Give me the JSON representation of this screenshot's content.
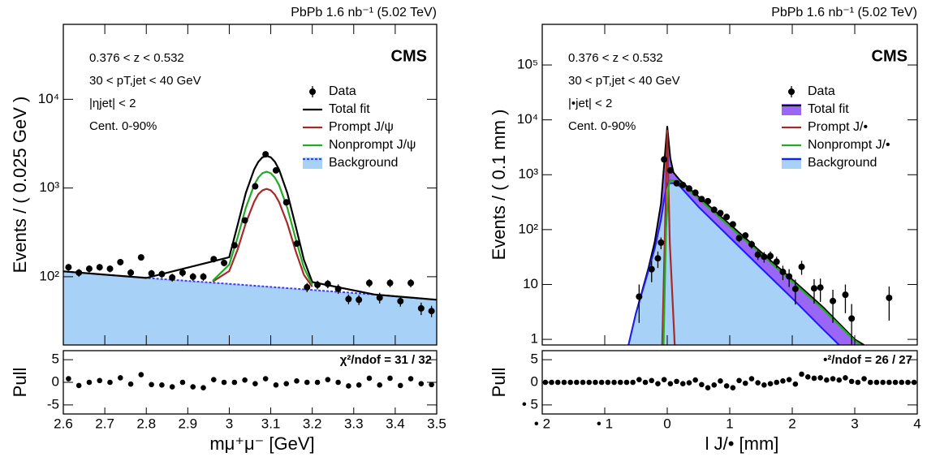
{
  "chart_data": [
    {
      "type": "line",
      "header": "PbPb 1.6 nb⁻¹ (5.02 TeV)",
      "label": "CMS",
      "annotations": [
        "0.376 < z < 0.532",
        "30 < pT,jet < 40 GeV",
        "|ηjet| < 2",
        "Cent. 0-90%"
      ],
      "ylabel": "Events / ( 0.025 GeV )",
      "xlim": [
        2.6,
        3.5
      ],
      "ylim": [
        17,
        70000
      ],
      "log_y": true,
      "yticks": [
        {
          "value": 100,
          "label": "10²"
        },
        {
          "value": 1000,
          "label": "10³"
        },
        {
          "value": 10000,
          "label": "10⁴"
        }
      ],
      "legend": true,
      "series": [
        {
          "name": "Data",
          "kind": "errorbar",
          "color": "#000000",
          "x": [
            2.6125,
            2.6375,
            2.6625,
            2.6875,
            2.7125,
            2.7375,
            2.7625,
            2.7875,
            2.8125,
            2.8375,
            2.8625,
            2.8875,
            2.9125,
            2.9375,
            2.9625,
            2.9875,
            3.0125,
            3.0375,
            3.0625,
            3.0875,
            3.1125,
            3.1375,
            3.1625,
            3.1875,
            3.2125,
            3.2375,
            3.2625,
            3.2875,
            3.3125,
            3.3375,
            3.3625,
            3.3875,
            3.4125,
            3.4375,
            3.4625,
            3.4875
          ],
          "values": [
            128,
            111,
            123,
            128,
            123,
            146,
            111,
            165,
            109,
            107,
            98,
            111,
            100,
            100,
            158,
            143,
            226,
            432,
            1045,
            2400,
            1580,
            690,
            236,
            76,
            81,
            83,
            73,
            56,
            55,
            85,
            58,
            85,
            53,
            85,
            44,
            41
          ],
          "errors": [
            11,
            11,
            11,
            11,
            11,
            12,
            11,
            13,
            10,
            10,
            10,
            11,
            10,
            10,
            13,
            12,
            15,
            21,
            32,
            49,
            40,
            26,
            15,
            9,
            9,
            9,
            9,
            7,
            7,
            9,
            8,
            9,
            7,
            9,
            7,
            6
          ]
        },
        {
          "name": "Total fit",
          "kind": "line",
          "color": "#000000",
          "x": [
            2.6,
            2.8,
            3.0,
            3.02,
            3.04,
            3.06,
            3.07,
            3.08,
            3.09,
            3.1,
            3.11,
            3.12,
            3.14,
            3.16,
            3.18,
            3.2,
            3.35,
            3.5
          ],
          "values": [
            115,
            97,
            166,
            382,
            883,
            1618,
            1974,
            2219,
            2307,
            2218,
            1972,
            1615,
            874,
            374,
            155,
            87,
            63,
            55
          ]
        },
        {
          "name": "Prompt J/ψ",
          "kind": "line",
          "color": "#a52a2a",
          "x": [
            2.96,
            3.0,
            3.02,
            3.04,
            3.06,
            3.07,
            3.08,
            3.09,
            3.1,
            3.11,
            3.12,
            3.14,
            3.16,
            3.18,
            3.2
          ],
          "values": [
            88,
            116,
            202,
            404,
            700,
            850,
            942,
            977,
            941,
            840,
            697,
            398,
            195,
            105,
            77
          ]
        },
        {
          "name": "Nonprompt J/ψ",
          "kind": "line",
          "color": "#22aa22",
          "x": [
            2.96,
            3.0,
            3.02,
            3.04,
            3.06,
            3.07,
            3.08,
            3.09,
            3.1,
            3.11,
            3.12,
            3.14,
            3.16,
            3.18,
            3.2
          ],
          "values": [
            90,
            137,
            277,
            602,
            1080,
            1311,
            1470,
            1527,
            1468,
            1308,
            1077,
            596,
            269,
            126,
            81
          ]
        },
        {
          "name": "Background",
          "kind": "area",
          "color": "#3b3bff",
          "fill": "#a8d1f7",
          "dashed": true,
          "x": [
            2.6,
            2.8,
            3.0,
            3.2,
            3.35,
            3.5
          ],
          "values": [
            115,
            97,
            83,
            71,
            63,
            55
          ]
        }
      ]
    },
    {
      "type": "scatter",
      "ylabel": "Pull",
      "xlabel": "mμ⁺μ⁻ [GeV]",
      "text": "χ²/ndof = 31 / 32",
      "xlim": [
        2.6,
        3.5
      ],
      "xticks": [
        2.6,
        2.7,
        2.8,
        2.9,
        3,
        3.1,
        3.2,
        3.3,
        3.4,
        3.5
      ],
      "ylim": [
        -7,
        7
      ],
      "yticks": [
        5,
        0,
        -5
      ],
      "series": [
        {
          "color": "#000000",
          "x": [
            2.6125,
            2.6375,
            2.6625,
            2.6875,
            2.7125,
            2.7375,
            2.7625,
            2.7875,
            2.8125,
            2.8375,
            2.8625,
            2.8875,
            2.9125,
            2.9375,
            2.9625,
            2.9875,
            3.0125,
            3.0375,
            3.0625,
            3.0875,
            3.1125,
            3.1375,
            3.1625,
            3.1875,
            3.2125,
            3.2375,
            3.2625,
            3.2875,
            3.3125,
            3.3375,
            3.3625,
            3.3875,
            3.4125,
            3.4375,
            3.4625,
            3.4875
          ],
          "values": [
            0.8,
            -0.7,
            0,
            0.4,
            0,
            1,
            -0.4,
            1.7,
            -0.5,
            -0.6,
            -1,
            0,
            -1,
            -1.2,
            0.6,
            0,
            0,
            0.5,
            -0.3,
            0.8,
            -0.6,
            -0.3,
            0.3,
            0,
            0,
            0.6,
            0,
            -0.8,
            -0.6,
            0.9,
            -0.6,
            0.9,
            -0.7,
            0.8,
            -0.3,
            -0.5
          ]
        }
      ]
    },
    {
      "type": "line",
      "header": "PbPb 1.6 nb⁻¹ (5.02 TeV)",
      "label": "CMS",
      "annotations": [
        "0.376 < z < 0.532",
        "30 < pT,jet < 40 GeV",
        "|•jet| < 2",
        "Cent. 0-90%"
      ],
      "ylabel": "Events / ( 0.1 mm )",
      "xlim": [
        -2,
        4
      ],
      "ylim": [
        0.79,
        550000
      ],
      "log_y": true,
      "yticks": [
        1,
        10,
        {
          "value": 100,
          "label": "10²"
        },
        {
          "value": 1000,
          "label": "10³"
        },
        {
          "value": 10000,
          "label": "10⁴"
        },
        {
          "value": 100000,
          "label": "10⁵"
        }
      ],
      "legend": true,
      "series": [
        {
          "name": "Data",
          "kind": "errorbar",
          "color": "#000000",
          "x": [
            -0.45,
            -0.25,
            -0.15,
            -0.1,
            -0.05,
            0.05,
            0.15,
            0.25,
            0.35,
            0.45,
            0.55,
            0.65,
            0.75,
            0.85,
            0.95,
            1.05,
            1.15,
            1.25,
            1.35,
            1.45,
            1.55,
            1.65,
            1.75,
            1.85,
            1.95,
            2.05,
            2.15,
            2.35,
            2.45,
            2.65,
            2.85,
            2.95,
            3.55
          ],
          "values": [
            6,
            19,
            30,
            58,
            1900,
            1200,
            700,
            650,
            560,
            470,
            360,
            330,
            230,
            200,
            170,
            125,
            70,
            78,
            54,
            35,
            32,
            33,
            26,
            17,
            14,
            8.3,
            21,
            8.5,
            8.8,
            5,
            6.5,
            2.4,
            5.7
          ],
          "errors": [
            4,
            8,
            10,
            14,
            60,
            45,
            35,
            33,
            30,
            28,
            24,
            23,
            20,
            18,
            17,
            14,
            11,
            11,
            9,
            7,
            7,
            7,
            6,
            5,
            5,
            4,
            6,
            4,
            4,
            3,
            3.5,
            2,
            3.5
          ]
        },
        {
          "name": "Total fit",
          "kind": "area",
          "color": "#000000",
          "fill": "#9a66f5",
          "x": [
            -0.62,
            -0.5,
            -0.3,
            -0.2,
            -0.1,
            -0.05,
            0,
            0.05,
            0.1,
            0.2,
            0.5,
            1,
            1.5,
            2,
            2.5,
            3,
            3.15
          ],
          "values": [
            0.79,
            3,
            20,
            60,
            300,
            1500,
            7700,
            2000,
            1100,
            800,
            400,
            125,
            39,
            12.3,
            3.8,
            1.0,
            0.79
          ]
        },
        {
          "name": "Prompt J/•",
          "kind": "line",
          "color": "#a52a2a",
          "x": [
            -0.08,
            -0.04,
            0,
            0.04,
            0.12
          ],
          "values": [
            0.79,
            60,
            6500,
            60,
            0.79
          ]
        },
        {
          "name": "Nonprompt J/•",
          "kind": "line",
          "color": "#22aa22",
          "x": [
            -0.06,
            -0.02,
            0.02,
            0.05,
            0.1,
            0.2,
            0.5,
            1,
            1.5,
            2,
            2.5,
            3,
            3.1
          ],
          "values": [
            0.79,
            100,
            600,
            800,
            780,
            720,
            370,
            115,
            36,
            11.4,
            3.5,
            0.95,
            0.79
          ]
        },
        {
          "name": "Background",
          "kind": "area",
          "color": "#1a1aff",
          "fill": "#a8d1f7",
          "x": [
            -0.62,
            -0.5,
            -0.3,
            -0.2,
            -0.1,
            -0.05,
            0,
            0.1,
            0.2,
            0.5,
            1,
            1.5,
            2,
            2.5,
            2.75
          ],
          "values": [
            0.79,
            3,
            18,
            45,
            150,
            350,
            700,
            700,
            620,
            260,
            72,
            20,
            5.6,
            1.5,
            0.79
          ]
        }
      ]
    },
    {
      "type": "scatter",
      "ylabel": "Pull",
      "xlabel": "l J/• [mm]",
      "text": "•²/ndof = 26 / 27",
      "xlim": [
        -2,
        4
      ],
      "xticks": [
        {
          "value": -2,
          "label": "• 2"
        },
        {
          "value": -1,
          "label": "• 1"
        },
        0,
        1,
        2,
        3,
        4
      ],
      "ylim": [
        -7,
        7
      ],
      "yticks": [
        5,
        0,
        {
          "value": -5,
          "label": "• 5"
        }
      ],
      "series": [
        {
          "color": "#000000",
          "x": [
            -1.95,
            -1.85,
            -1.75,
            -1.65,
            -1.55,
            -1.45,
            -1.35,
            -1.25,
            -1.15,
            -1.05,
            -0.95,
            -0.85,
            -0.75,
            -0.65,
            -0.55,
            -0.45,
            -0.35,
            -0.25,
            -0.15,
            -0.05,
            0.05,
            0.15,
            0.25,
            0.35,
            0.45,
            0.55,
            0.65,
            0.75,
            0.85,
            0.95,
            1.05,
            1.15,
            1.25,
            1.35,
            1.45,
            1.55,
            1.65,
            1.75,
            1.85,
            1.95,
            2.05,
            2.15,
            2.25,
            2.35,
            2.45,
            2.55,
            2.65,
            2.75,
            2.85,
            2.95,
            3.05,
            3.15,
            3.25,
            3.35,
            3.45,
            3.55,
            3.65,
            3.75,
            3.85,
            3.95
          ],
          "values": [
            0,
            0,
            0,
            0,
            0,
            0,
            0,
            0,
            0,
            0,
            0,
            0,
            0,
            0,
            0,
            0.6,
            0,
            0.4,
            -0.3,
            0.6,
            -0.3,
            0.2,
            -0.3,
            -0.1,
            0.5,
            -0.5,
            -1.2,
            -0.6,
            0.3,
            -0.8,
            -1.2,
            0.4,
            -0.2,
            0.8,
            -0.1,
            -0.6,
            -0.3,
            0,
            0.3,
            0.6,
            -0.4,
            1.8,
            1.2,
            0.9,
            1,
            0.5,
            0.8,
            0.5,
            1,
            0.2,
            0,
            0.8,
            0,
            0,
            0,
            0,
            0,
            0,
            0,
            0
          ]
        }
      ]
    }
  ]
}
